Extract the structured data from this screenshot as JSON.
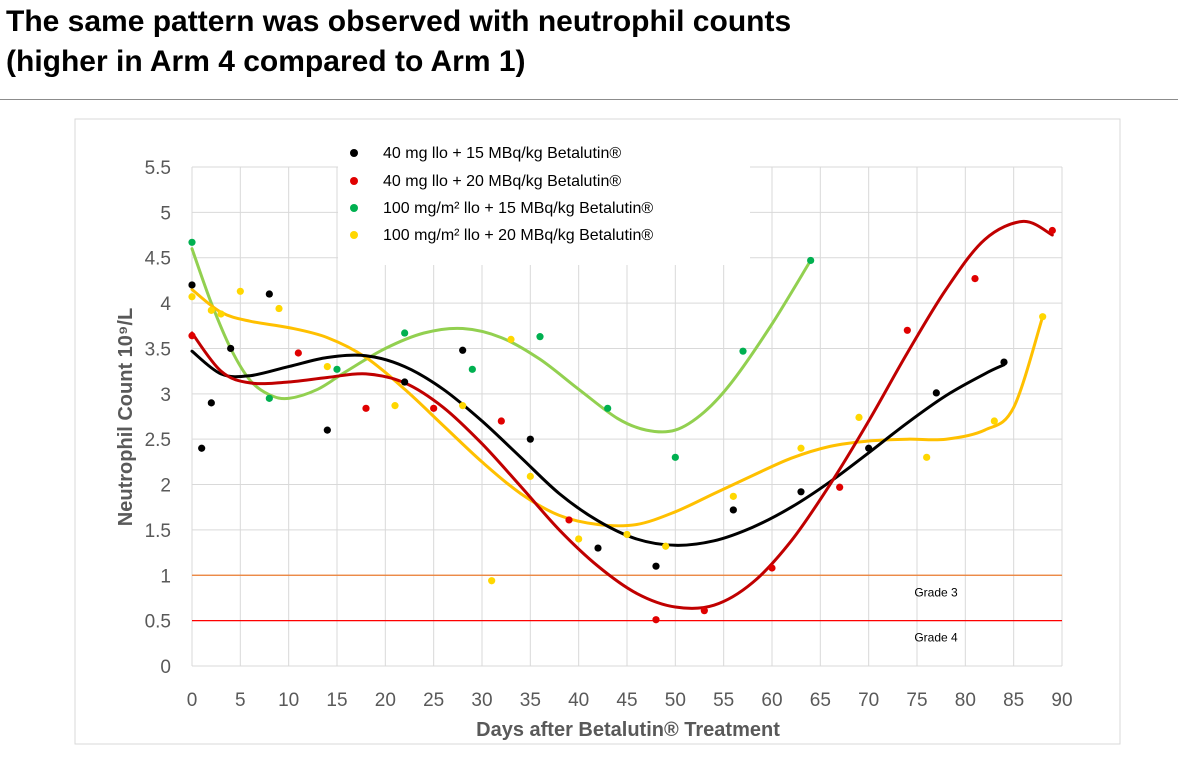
{
  "slide": {
    "title_line1": "The same pattern was observed with neutrophil counts",
    "title_line2": "(higher in Arm 4 compared to Arm 1)"
  },
  "chart_data": {
    "type": "scatter",
    "title": "",
    "xlabel": "Days after Betalutin® Treatment",
    "ylabel": "Neutrophil Count 10⁹/L",
    "xlim": [
      0,
      90
    ],
    "ylim": [
      0,
      5.5
    ],
    "xticks": [
      0,
      5,
      10,
      15,
      20,
      25,
      30,
      35,
      40,
      45,
      50,
      55,
      60,
      65,
      70,
      75,
      80,
      85,
      90
    ],
    "yticks": [
      0,
      0.5,
      1,
      1.5,
      2,
      2.5,
      3,
      3.5,
      4,
      4.5,
      5,
      5.5
    ],
    "grid": true,
    "legend_position": "top-center",
    "series": [
      {
        "name": "40 mg llo + 15 MBq/kg Betalutin®",
        "color": "#000000",
        "trend_color": "#000000",
        "points": [
          [
            0,
            4.2
          ],
          [
            1,
            2.4
          ],
          [
            2,
            2.9
          ],
          [
            4,
            3.5
          ],
          [
            8,
            4.1
          ],
          [
            14,
            2.6
          ],
          [
            22,
            3.13
          ],
          [
            28,
            3.48
          ],
          [
            35,
            2.5
          ],
          [
            42,
            1.3
          ],
          [
            48,
            1.1
          ],
          [
            56,
            1.72
          ],
          [
            63,
            1.92
          ],
          [
            70,
            2.4
          ],
          [
            77,
            3.01
          ],
          [
            84,
            3.35
          ]
        ],
        "trend": [
          [
            0,
            3.47
          ],
          [
            3,
            3.22
          ],
          [
            6,
            3.2
          ],
          [
            10,
            3.3
          ],
          [
            14,
            3.4
          ],
          [
            18,
            3.42
          ],
          [
            22,
            3.3
          ],
          [
            26,
            3.05
          ],
          [
            30,
            2.7
          ],
          [
            34,
            2.3
          ],
          [
            38,
            1.9
          ],
          [
            42,
            1.6
          ],
          [
            46,
            1.4
          ],
          [
            50,
            1.33
          ],
          [
            54,
            1.38
          ],
          [
            58,
            1.53
          ],
          [
            62,
            1.75
          ],
          [
            66,
            2.03
          ],
          [
            70,
            2.35
          ],
          [
            74,
            2.68
          ],
          [
            78,
            2.98
          ],
          [
            82,
            3.22
          ],
          [
            84,
            3.32
          ]
        ]
      },
      {
        "name": "40 mg llo + 20 MBq/kg Betalutin®",
        "color": "#e00000",
        "trend_color": "#c00000",
        "points": [
          [
            0,
            3.64
          ],
          [
            11,
            3.45
          ],
          [
            18,
            2.84
          ],
          [
            25,
            2.84
          ],
          [
            32,
            2.7
          ],
          [
            39,
            1.61
          ],
          [
            48,
            0.51
          ],
          [
            53,
            0.61
          ],
          [
            60,
            1.08
          ],
          [
            67,
            1.97
          ],
          [
            74,
            3.7
          ],
          [
            81,
            4.27
          ],
          [
            89,
            4.8
          ]
        ],
        "trend": [
          [
            0,
            3.67
          ],
          [
            3,
            3.25
          ],
          [
            6,
            3.12
          ],
          [
            10,
            3.13
          ],
          [
            14,
            3.18
          ],
          [
            18,
            3.22
          ],
          [
            22,
            3.12
          ],
          [
            26,
            2.85
          ],
          [
            30,
            2.45
          ],
          [
            34,
            1.98
          ],
          [
            38,
            1.5
          ],
          [
            42,
            1.1
          ],
          [
            46,
            0.8
          ],
          [
            50,
            0.65
          ],
          [
            54,
            0.67
          ],
          [
            58,
            0.92
          ],
          [
            62,
            1.38
          ],
          [
            66,
            2.0
          ],
          [
            70,
            2.7
          ],
          [
            74,
            3.45
          ],
          [
            78,
            4.15
          ],
          [
            82,
            4.7
          ],
          [
            86,
            4.9
          ],
          [
            89,
            4.75
          ]
        ]
      },
      {
        "name": "100 mg/m² llo + 15 MBq/kg Betalutin®",
        "color": "#00b050",
        "trend_color": "#92d050",
        "points": [
          [
            0,
            4.67
          ],
          [
            8,
            2.95
          ],
          [
            15,
            3.27
          ],
          [
            22,
            3.67
          ],
          [
            29,
            3.27
          ],
          [
            36,
            3.63
          ],
          [
            43,
            2.84
          ],
          [
            50,
            2.3
          ],
          [
            57,
            3.47
          ],
          [
            64,
            4.47
          ]
        ],
        "trend": [
          [
            0,
            4.6
          ],
          [
            2,
            4.0
          ],
          [
            4,
            3.5
          ],
          [
            6,
            3.15
          ],
          [
            8,
            2.99
          ],
          [
            10,
            2.95
          ],
          [
            13,
            3.05
          ],
          [
            16,
            3.25
          ],
          [
            20,
            3.5
          ],
          [
            24,
            3.67
          ],
          [
            28,
            3.72
          ],
          [
            32,
            3.62
          ],
          [
            36,
            3.38
          ],
          [
            40,
            3.05
          ],
          [
            44,
            2.73
          ],
          [
            47,
            2.6
          ],
          [
            50,
            2.6
          ],
          [
            53,
            2.8
          ],
          [
            56,
            3.15
          ],
          [
            60,
            3.77
          ],
          [
            64,
            4.47
          ]
        ]
      },
      {
        "name": "100 mg/m² llo + 20 MBq/kg Betalutin®",
        "color": "#ffd700",
        "trend_color": "#ffc000",
        "points": [
          [
            0,
            4.07
          ],
          [
            2,
            3.92
          ],
          [
            3,
            3.88
          ],
          [
            5,
            4.13
          ],
          [
            9,
            3.94
          ],
          [
            14,
            3.3
          ],
          [
            21,
            2.87
          ],
          [
            28,
            2.87
          ],
          [
            31,
            0.94
          ],
          [
            33,
            3.6
          ],
          [
            35,
            2.09
          ],
          [
            40,
            1.4
          ],
          [
            45,
            1.45
          ],
          [
            49,
            1.32
          ],
          [
            56,
            1.87
          ],
          [
            63,
            2.4
          ],
          [
            69,
            2.74
          ],
          [
            76,
            2.3
          ],
          [
            83,
            2.7
          ],
          [
            88,
            3.85
          ]
        ],
        "trend": [
          [
            0,
            4.15
          ],
          [
            3,
            3.9
          ],
          [
            6,
            3.8
          ],
          [
            10,
            3.73
          ],
          [
            14,
            3.62
          ],
          [
            18,
            3.4
          ],
          [
            22,
            3.05
          ],
          [
            26,
            2.65
          ],
          [
            30,
            2.25
          ],
          [
            34,
            1.9
          ],
          [
            38,
            1.66
          ],
          [
            42,
            1.56
          ],
          [
            46,
            1.56
          ],
          [
            50,
            1.7
          ],
          [
            54,
            1.9
          ],
          [
            58,
            2.1
          ],
          [
            62,
            2.29
          ],
          [
            66,
            2.42
          ],
          [
            70,
            2.48
          ],
          [
            74,
            2.5
          ],
          [
            78,
            2.5
          ],
          [
            82,
            2.6
          ],
          [
            85,
            2.85
          ],
          [
            88,
            3.85
          ]
        ]
      }
    ],
    "reference_lines": [
      {
        "label": "Grade 3",
        "y": 1.0,
        "color": "#ed7d31"
      },
      {
        "label": "Grade 4",
        "y": 0.5,
        "color": "#ff0000"
      }
    ]
  }
}
